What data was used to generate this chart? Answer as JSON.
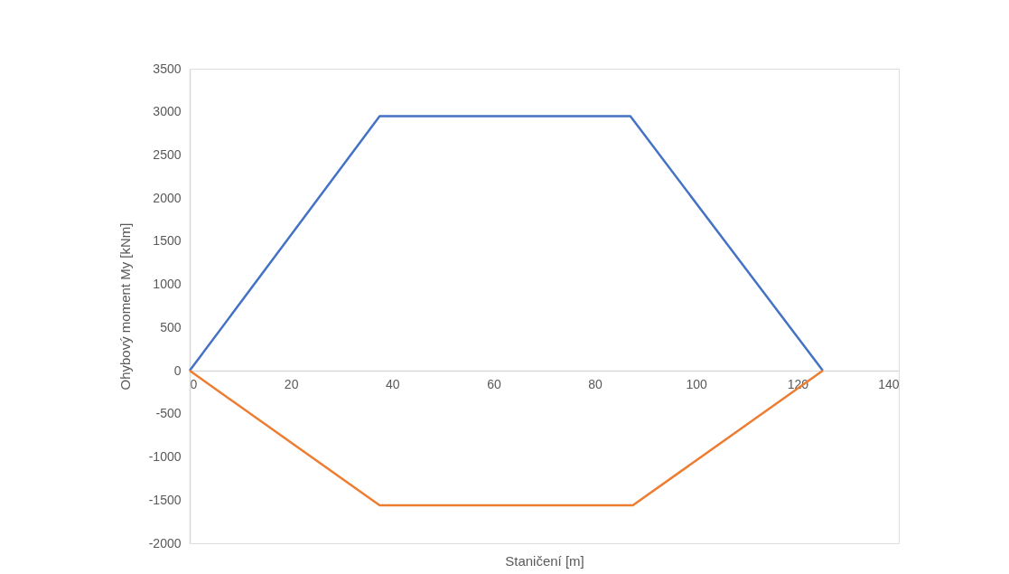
{
  "chart_data": {
    "type": "line",
    "xlabel": "Staničení [m]",
    "ylabel": "Ohybový moment My [kNm]",
    "xlim": [
      0,
      140
    ],
    "xticks": [
      0,
      20,
      40,
      60,
      80,
      100,
      120,
      140
    ],
    "ylim": [
      -2000,
      3500
    ],
    "yticks": [
      -2000,
      -1500,
      -1000,
      -500,
      0,
      500,
      1000,
      1500,
      2000,
      2500,
      3000,
      3500
    ],
    "grid": false,
    "marker": "none",
    "line_style": "solid",
    "series": [
      {
        "color": "#4472c4",
        "x": [
          0,
          37.5,
          87,
          125
        ],
        "values": [
          0,
          2950,
          2950,
          0
        ]
      },
      {
        "color": "#ed7d31",
        "x": [
          0,
          37.5,
          87.5,
          125
        ],
        "values": [
          0,
          -1560,
          -1560,
          0
        ]
      }
    ]
  }
}
